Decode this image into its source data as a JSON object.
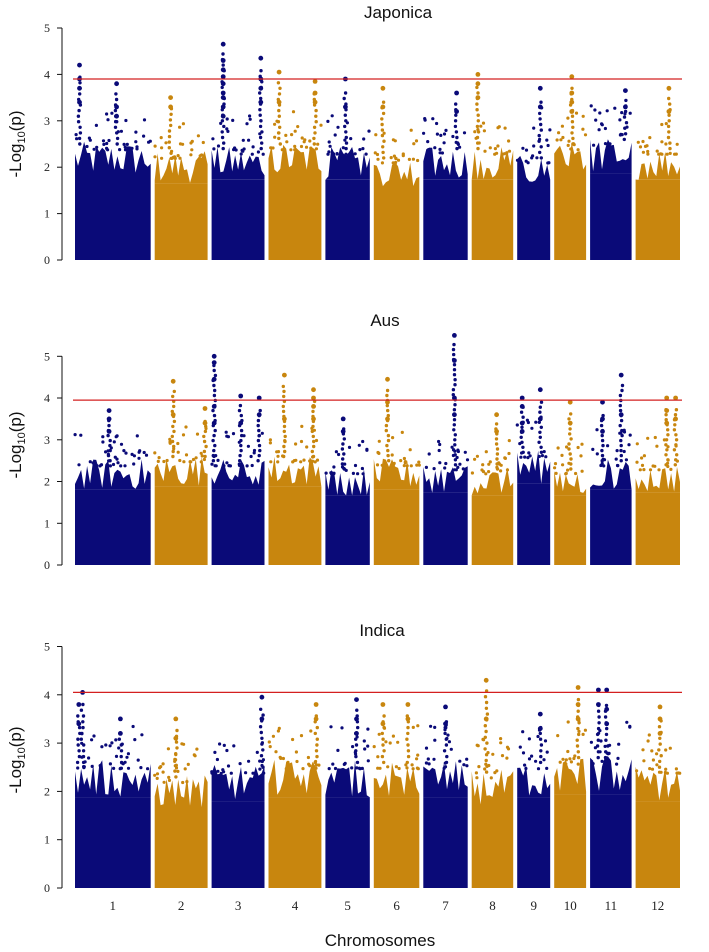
{
  "chart_data": {
    "type": "scatter",
    "subtype": "manhattan",
    "xlabel": "Chromosomes",
    "ylabel_parts": [
      "-Log",
      "10",
      "(p)"
    ],
    "chromosomes": [
      "1",
      "2",
      "3",
      "4",
      "5",
      "6",
      "7",
      "8",
      "9",
      "10",
      "11",
      "12"
    ],
    "chromosome_relative_lengths": [
      1.4,
      1.0,
      1.0,
      1.0,
      0.85,
      0.87,
      0.85,
      0.8,
      0.65,
      0.63,
      0.8,
      0.85
    ],
    "colors": {
      "odd": "#0a0a78",
      "even": "#c8860e",
      "threshold": "#d42020"
    },
    "panels": [
      {
        "title": "Japonica",
        "ylim": [
          0,
          5
        ],
        "yticks": [
          "0",
          "1",
          "2",
          "3",
          "4",
          "5"
        ],
        "threshold": 3.9,
        "base_top": [
          2.5,
          2.3,
          2.4,
          2.5,
          2.4,
          2.2,
          2.4,
          2.4,
          2.2,
          2.5,
          2.6,
          2.4
        ],
        "peaks": [
          {
            "chrom": 1,
            "pos": 0.06,
            "values": [
              4.2,
              3.9,
              3.7,
              3.4
            ]
          },
          {
            "chrom": 1,
            "pos": 0.55,
            "values": [
              3.8,
              3.3,
              3.1
            ]
          },
          {
            "chrom": 2,
            "pos": 0.3,
            "values": [
              3.5,
              3.3
            ]
          },
          {
            "chrom": 3,
            "pos": 0.22,
            "values": [
              4.65,
              4.3,
              4.1,
              3.95,
              3.8,
              3.6,
              3.5,
              3.3,
              3.1
            ]
          },
          {
            "chrom": 3,
            "pos": 0.93,
            "values": [
              4.35,
              3.9,
              3.7,
              3.4
            ]
          },
          {
            "chrom": 4,
            "pos": 0.2,
            "values": [
              4.05,
              3.4
            ]
          },
          {
            "chrom": 4,
            "pos": 0.88,
            "values": [
              3.85,
              3.6,
              3.4
            ]
          },
          {
            "chrom": 5,
            "pos": 0.45,
            "values": [
              3.9,
              3.3
            ]
          },
          {
            "chrom": 6,
            "pos": 0.2,
            "values": [
              3.7,
              3.3
            ]
          },
          {
            "chrom": 7,
            "pos": 0.75,
            "values": [
              3.6,
              3.2
            ]
          },
          {
            "chrom": 8,
            "pos": 0.15,
            "values": [
              4.0,
              3.8,
              3.5
            ]
          },
          {
            "chrom": 9,
            "pos": 0.7,
            "values": [
              3.7,
              3.3
            ]
          },
          {
            "chrom": 10,
            "pos": 0.55,
            "values": [
              3.95,
              3.6,
              3.4,
              3.2
            ]
          },
          {
            "chrom": 11,
            "pos": 0.85,
            "values": [
              3.65,
              3.3
            ]
          },
          {
            "chrom": 12,
            "pos": 0.75,
            "values": [
              3.7,
              3.2
            ]
          }
        ]
      },
      {
        "title": "Aus",
        "ylim": [
          0,
          5.75
        ],
        "yticks": [
          "0",
          "1",
          "2",
          "3",
          "4",
          "5"
        ],
        "threshold": 3.95,
        "base_top": [
          2.5,
          2.6,
          2.5,
          2.6,
          2.3,
          2.5,
          2.4,
          2.3,
          2.7,
          2.3,
          2.5,
          2.4
        ],
        "peaks": [
          {
            "chrom": 1,
            "pos": 0.45,
            "values": [
              3.7,
              3.5,
              3.2
            ]
          },
          {
            "chrom": 2,
            "pos": 0.35,
            "values": [
              4.4,
              3.6
            ]
          },
          {
            "chrom": 2,
            "pos": 0.95,
            "values": [
              3.75,
              3.4
            ]
          },
          {
            "chrom": 3,
            "pos": 0.05,
            "values": [
              5.0,
              4.85,
              4.45,
              3.8,
              3.4
            ]
          },
          {
            "chrom": 3,
            "pos": 0.55,
            "values": [
              4.05,
              3.4
            ]
          },
          {
            "chrom": 3,
            "pos": 0.9,
            "values": [
              4.0,
              3.6
            ]
          },
          {
            "chrom": 4,
            "pos": 0.3,
            "values": [
              4.55,
              3.5
            ]
          },
          {
            "chrom": 4,
            "pos": 0.85,
            "values": [
              4.2,
              4.0,
              3.8,
              3.5
            ]
          },
          {
            "chrom": 5,
            "pos": 0.4,
            "values": [
              3.5,
              3.2
            ]
          },
          {
            "chrom": 6,
            "pos": 0.3,
            "values": [
              4.45,
              3.9,
              3.5
            ]
          },
          {
            "chrom": 7,
            "pos": 0.7,
            "values": [
              5.5,
              4.9,
              4.0,
              3.6
            ]
          },
          {
            "chrom": 8,
            "pos": 0.6,
            "values": [
              3.6,
              3.2
            ]
          },
          {
            "chrom": 9,
            "pos": 0.15,
            "values": [
              4.0,
              3.8,
              3.4,
              3.2
            ]
          },
          {
            "chrom": 9,
            "pos": 0.7,
            "values": [
              4.2,
              3.5
            ]
          },
          {
            "chrom": 10,
            "pos": 0.5,
            "values": [
              3.9,
              3.4
            ]
          },
          {
            "chrom": 11,
            "pos": 0.3,
            "values": [
              3.9,
              3.5,
              3.2
            ]
          },
          {
            "chrom": 11,
            "pos": 0.75,
            "values": [
              4.55,
              3.6
            ]
          },
          {
            "chrom": 12,
            "pos": 0.7,
            "values": [
              4.0,
              3.7,
              3.4
            ]
          },
          {
            "chrom": 12,
            "pos": 0.9,
            "values": [
              4.0,
              3.5
            ]
          }
        ]
      },
      {
        "title": "Indica",
        "ylim": [
          0,
          5.3
        ],
        "yticks": [
          "0",
          "1",
          "2",
          "3",
          "4",
          "5"
        ],
        "threshold": 4.05,
        "base_top": [
          2.6,
          2.3,
          2.5,
          2.6,
          2.6,
          2.6,
          2.6,
          2.4,
          2.6,
          2.7,
          2.7,
          2.5
        ],
        "peaks": [
          {
            "chrom": 1,
            "pos": 0.05,
            "values": [
              3.8,
              3.4
            ]
          },
          {
            "chrom": 1,
            "pos": 0.1,
            "values": [
              4.05
            ]
          },
          {
            "chrom": 1,
            "pos": 0.6,
            "values": [
              3.5,
              3.2
            ]
          },
          {
            "chrom": 2,
            "pos": 0.4,
            "values": [
              3.5,
              3.1
            ]
          },
          {
            "chrom": 3,
            "pos": 0.95,
            "values": [
              3.95,
              3.5
            ]
          },
          {
            "chrom": 4,
            "pos": 0.9,
            "values": [
              3.8,
              3.5
            ]
          },
          {
            "chrom": 5,
            "pos": 0.7,
            "values": [
              3.9,
              3.5,
              3.2
            ]
          },
          {
            "chrom": 6,
            "pos": 0.2,
            "values": [
              3.8,
              3.4
            ]
          },
          {
            "chrom": 6,
            "pos": 0.75,
            "values": [
              3.8,
              3.5
            ]
          },
          {
            "chrom": 7,
            "pos": 0.5,
            "values": [
              3.75,
              3.4
            ]
          },
          {
            "chrom": 8,
            "pos": 0.35,
            "values": [
              4.3,
              3.5
            ]
          },
          {
            "chrom": 9,
            "pos": 0.7,
            "values": [
              3.6,
              3.3
            ]
          },
          {
            "chrom": 10,
            "pos": 0.75,
            "values": [
              4.15,
              3.8,
              3.5
            ]
          },
          {
            "chrom": 11,
            "pos": 0.2,
            "values": [
              4.1,
              3.8
            ]
          },
          {
            "chrom": 11,
            "pos": 0.4,
            "values": [
              4.1,
              3.7,
              3.4
            ]
          },
          {
            "chrom": 12,
            "pos": 0.55,
            "values": [
              3.75,
              3.5,
              3.2
            ]
          }
        ]
      }
    ]
  }
}
